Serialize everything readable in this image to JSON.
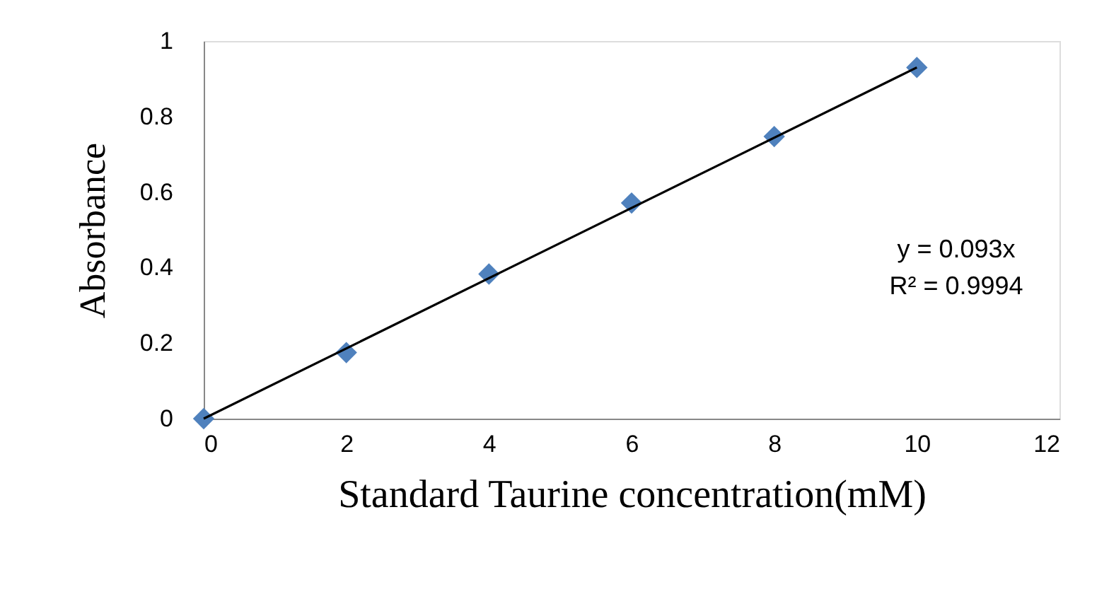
{
  "chart_data": {
    "type": "scatter",
    "xlabel": "Standard Taurine concentration(mM)",
    "ylabel": "Absorbance",
    "x": [
      0,
      2,
      4,
      6,
      8,
      10
    ],
    "series": [
      {
        "color": "#4f81bd",
        "marker": "diamond",
        "values": [
          0,
          0.175,
          0.383,
          0.571,
          0.747,
          0.93
        ]
      },
      {
        "type": "line",
        "color": "#000000",
        "x": [
          0,
          10
        ],
        "values": [
          0,
          0.93
        ],
        "line_style": "solid"
      }
    ],
    "xlim": [
      0,
      12
    ],
    "xticks": [
      0,
      2,
      4,
      6,
      8,
      10,
      12
    ],
    "ylim": [
      0,
      1
    ],
    "yticks": [
      0,
      0.2,
      0.4,
      0.6,
      0.8,
      1
    ],
    "grid": false,
    "annotations": [
      "y = 0.093x",
      "R² = 0.9994"
    ]
  }
}
